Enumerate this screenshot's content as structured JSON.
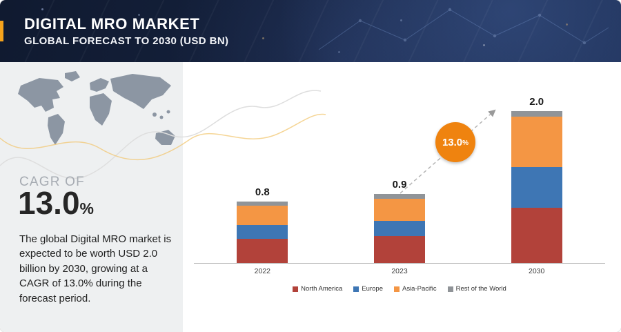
{
  "header": {
    "title": "DIGITAL MRO MARKET",
    "subtitle": "GLOBAL FORECAST TO 2030 (USD BN)",
    "accent_color": "#f5a31c"
  },
  "sidebar": {
    "cagr_label": "CAGR OF",
    "cagr_value": "13.0",
    "cagr_unit": "%",
    "description": "The global Digital MRO market is expected to be worth USD 2.0 billion by 2030, growing at a CAGR of 13.0% during the forecast period."
  },
  "chart_data": {
    "type": "bar",
    "stacked": true,
    "categories": [
      "2022",
      "2023",
      "2030"
    ],
    "series": [
      {
        "name": "North America",
        "color": "#b2423a",
        "values": [
          0.32,
          0.35,
          0.73
        ]
      },
      {
        "name": "Europe",
        "color": "#3e76b4",
        "values": [
          0.18,
          0.2,
          0.54
        ]
      },
      {
        "name": "Asia-Pacific",
        "color": "#f49644",
        "values": [
          0.25,
          0.29,
          0.66
        ]
      },
      {
        "name": "Rest of the World",
        "color": "#909498",
        "values": [
          0.05,
          0.06,
          0.07
        ]
      }
    ],
    "totals": [
      "0.8",
      "0.9",
      "2.0"
    ],
    "ylim": [
      0,
      2.2
    ],
    "unit": "USD BN",
    "legend_position": "bottom",
    "annotation": {
      "value": "13.0",
      "unit": "%",
      "color": "#ef830f"
    }
  }
}
